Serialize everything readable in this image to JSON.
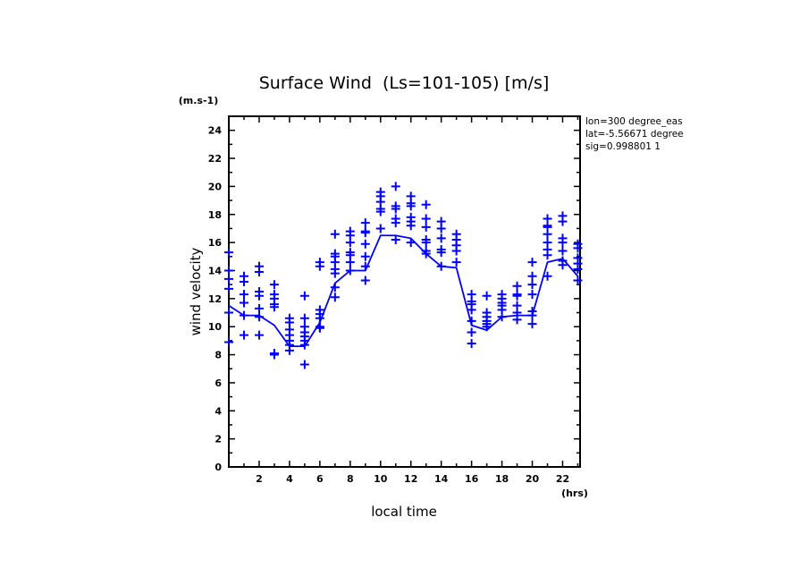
{
  "chart_data": {
    "type": "scatter",
    "title": "Surface Wind  (Ls=101-105) [m/s]",
    "xlabel": "local time",
    "xunit": "(hrs)",
    "ylabel": "wind velocity",
    "yunit": "(m.s-1)",
    "xlim": [
      0,
      23.15
    ],
    "ylim": [
      0,
      25
    ],
    "xticks": [
      2,
      4,
      6,
      8,
      10,
      12,
      14,
      16,
      18,
      20,
      22
    ],
    "yticks": [
      0,
      2,
      4,
      6,
      8,
      10,
      12,
      14,
      16,
      18,
      20,
      22,
      24
    ],
    "grid": false,
    "annotations": [
      "lon=300 degree_eas",
      "lat=-5.56671 degree",
      "sig=0.998801 1"
    ],
    "color": "#0000ff",
    "mean_line": {
      "x": [
        0,
        1,
        2,
        3,
        4,
        5,
        6,
        7,
        8,
        9,
        10,
        11,
        12,
        13,
        14,
        15,
        16,
        17,
        18,
        19,
        20,
        21,
        22,
        23
      ],
      "y": [
        11.5,
        10.8,
        10.8,
        10.1,
        8.6,
        8.6,
        10.3,
        13.1,
        14.0,
        14.0,
        16.5,
        16.5,
        16.3,
        15.2,
        14.3,
        14.2,
        10.1,
        9.75,
        10.7,
        10.8,
        10.8,
        14.6,
        14.85,
        13.6
      ]
    },
    "points": [
      [
        15.3,
        14.0,
        13.4,
        12.7,
        11.0,
        8.9
      ],
      [
        13.6,
        13.2,
        12.3,
        11.7,
        10.8,
        9.4
      ],
      [
        14.3,
        13.9,
        12.5,
        12.2,
        11.3,
        10.7,
        9.4
      ],
      [
        13.0,
        12.3,
        12.0,
        11.6,
        11.4,
        8.1,
        8.0
      ],
      [
        10.6,
        10.3,
        9.8,
        9.4,
        9.0,
        8.7,
        8.3
      ],
      [
        12.2,
        10.6,
        10.0,
        9.6,
        9.3,
        9.0,
        8.7,
        7.3
      ],
      [
        14.6,
        14.3,
        11.2,
        10.9,
        10.6,
        10.0,
        9.9
      ],
      [
        16.6,
        15.2,
        15.0,
        14.6,
        14.1,
        13.8,
        12.8,
        12.1
      ],
      [
        16.8,
        16.5,
        16.0,
        15.3,
        15.1,
        14.6,
        14.0
      ],
      [
        17.4,
        16.8,
        16.7,
        15.9,
        15.0,
        14.3,
        13.3
      ],
      [
        19.6,
        19.3,
        18.9,
        18.4,
        18.2,
        17.0
      ],
      [
        20.0,
        18.6,
        18.4,
        17.7,
        17.4,
        16.2
      ],
      [
        19.3,
        18.8,
        18.6,
        17.8,
        17.5,
        17.2,
        16.0
      ],
      [
        18.7,
        17.7,
        17.1,
        16.2,
        16.0,
        15.4,
        15.2
      ],
      [
        17.5,
        17.0,
        16.3,
        15.5,
        15.3,
        14.3
      ],
      [
        16.6,
        16.2,
        15.8,
        15.4,
        14.6
      ],
      [
        12.3,
        11.8,
        11.6,
        11.2,
        10.4,
        9.6,
        8.8
      ],
      [
        12.2,
        11.0,
        10.7,
        10.4,
        10.2,
        10.0
      ],
      [
        12.3,
        12.0,
        11.7,
        11.5,
        11.2,
        10.7
      ],
      [
        12.9,
        12.3,
        12.2,
        11.5,
        11.0,
        10.5
      ],
      [
        14.6,
        13.6,
        13.0,
        12.3,
        11.1,
        10.8,
        10.2
      ],
      [
        17.7,
        17.2,
        17.1,
        16.6,
        16.0,
        15.5,
        15.1,
        13.6
      ],
      [
        17.9,
        17.5,
        16.3,
        16.0,
        15.4,
        14.7,
        14.4
      ],
      [
        15.9,
        15.6,
        14.9,
        14.5,
        14.1,
        13.3
      ]
    ]
  }
}
